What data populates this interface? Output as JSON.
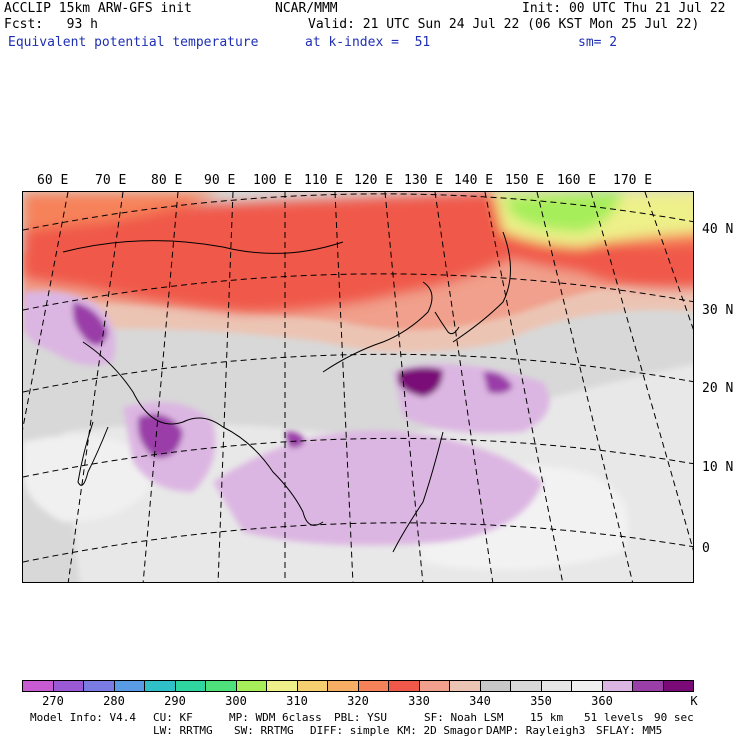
{
  "header": {
    "model": "ACCLIP 15km ARW-GFS init",
    "org": "NCAR/MMM",
    "init": "Init: 00 UTC Thu 21 Jul 22",
    "fcst": "Fcst:   93 h",
    "valid": "Valid: 21 UTC Sun 24 Jul 22 (06 KST Mon 25 Jul 22)",
    "field": "Equivalent potential temperature",
    "level": "at k-index =  51",
    "smooth": "sm= 2"
  },
  "map": {
    "lon_labels": [
      "60 E",
      "70 E",
      "80 E",
      "90 E",
      "100 E",
      "110 E",
      "120 E",
      "130 E",
      "140 E",
      "150 E",
      "160 E",
      "170 E"
    ],
    "lat_labels": [
      "40 N",
      "30 N",
      "20 N",
      "10 N",
      "0"
    ]
  },
  "colorbar": {
    "colors": [
      "#c85ad2",
      "#9b59d6",
      "#7b7be4",
      "#5a9be6",
      "#2fc0c8",
      "#2fd6a0",
      "#4ee07a",
      "#a6ee5a",
      "#eef08a",
      "#f6d070",
      "#f6ae64",
      "#f6825a",
      "#f0584a",
      "#f0a08c",
      "#ecc4b4",
      "#c8c8c8",
      "#d8d8d8",
      "#e6e6e6",
      "#f0f0f0",
      "#dcb6e2",
      "#9a3ea8",
      "#7a0a78"
    ],
    "ticks": [
      "270",
      "280",
      "290",
      "300",
      "310",
      "320",
      "330",
      "340",
      "350",
      "360"
    ],
    "unit": "K"
  },
  "footer": {
    "line1": [
      "Model Info: V4.4",
      "CU: KF",
      "MP: WDM 6class",
      "PBL: YSU",
      "SF: Noah LSM",
      "15 km",
      "51 levels",
      "90 sec"
    ],
    "line2": [
      "LW: RRTMG",
      "SW: RRTMG",
      "DIFF: simple",
      "KM: 2D Smagor",
      "DAMP: Rayleigh3",
      "SFLAY: MM5"
    ]
  }
}
